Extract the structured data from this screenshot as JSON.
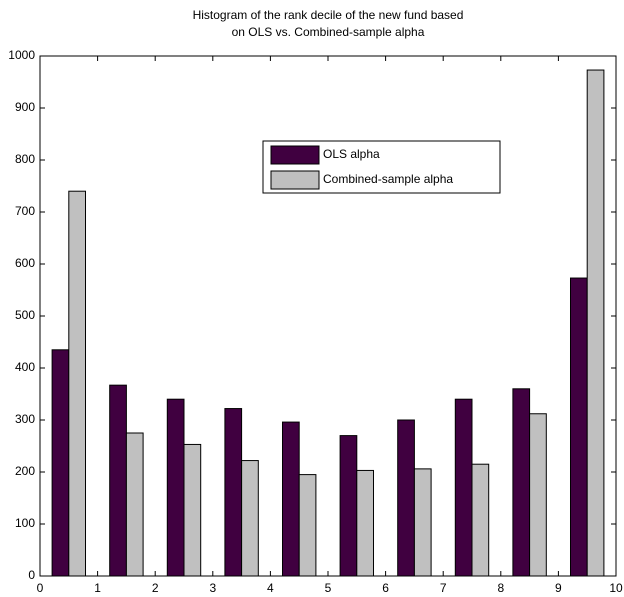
{
  "chart_data": {
    "type": "bar",
    "title": [
      "Histogram of the rank decile of the new fund based",
      "on OLS vs. Combined-sample alpha"
    ],
    "x": [
      0.5,
      1.5,
      2.5,
      3.5,
      4.5,
      5.5,
      6.5,
      7.5,
      8.5,
      9.5
    ],
    "series": [
      {
        "name": "OLS alpha",
        "color": "#400040",
        "values": [
          435,
          367,
          340,
          322,
          296,
          270,
          300,
          340,
          360,
          573
        ]
      },
      {
        "name": "Combined-sample alpha",
        "color": "#c0c0c0",
        "values": [
          740,
          275,
          253,
          222,
          195,
          203,
          206,
          215,
          312,
          973
        ]
      }
    ],
    "xlim": [
      0,
      10
    ],
    "xticks": [
      0,
      1,
      2,
      3,
      4,
      5,
      6,
      7,
      8,
      9,
      10
    ],
    "ylim": [
      0,
      1000
    ],
    "yticks": [
      0,
      100,
      200,
      300,
      400,
      500,
      600,
      700,
      800,
      900,
      1000
    ],
    "grid": false
  }
}
